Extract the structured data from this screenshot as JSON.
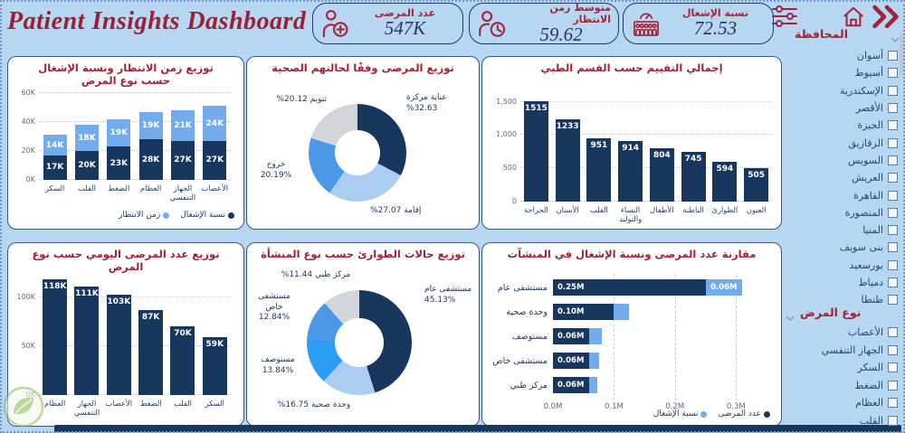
{
  "page": {
    "title": "Patient Insights Dashboard",
    "bg_color": "#b7d6f2",
    "accent_red": "#a12234",
    "navy": "#17375e",
    "light_blue": "#72acec"
  },
  "header": {
    "kpis": [
      {
        "label": "عدد المرضى",
        "value": "547K",
        "icon": "doctor-icon"
      },
      {
        "label": "متوسط زمن الانتظار",
        "value": "59.62",
        "icon": "person-clock-icon"
      },
      {
        "label": "نسبة الإشغال",
        "value": "72.53",
        "icon": "people-gauge-icon"
      }
    ]
  },
  "toolbar": {
    "icons": [
      "filter-sliders-icon",
      "home-icon",
      "double-chevron-icon"
    ]
  },
  "sidebar": {
    "filters": [
      {
        "title": "المحافظة",
        "items": [
          "أسوان",
          "أسيوط",
          "الإسكندرية",
          "الأقصر",
          "الجيزة",
          "الزقازيق",
          "السويس",
          "العريش",
          "القاهرة",
          "المنصورة",
          "المنيا",
          "بنى سويف",
          "بورسعيد",
          "دمياط",
          "طنطا"
        ]
      },
      {
        "title": "نوع المرض",
        "items": [
          "الأعصاب",
          "الجهاز التنفسي",
          "السكر",
          "الضغط",
          "العظام",
          "القلب"
        ]
      }
    ]
  },
  "chart_data": [
    {
      "id": "wait-time-occupancy-by-disease",
      "type": "column-stacked",
      "title": "توزيع زمن الانتظار ونسبة الإشغال حسب نوع المرض",
      "categories": [
        "السكر",
        "القلب",
        "الضغط",
        "العظام",
        "الجهاز التنفسي",
        "الأعصاب"
      ],
      "series": [
        {
          "name": "نسبة الإشغال",
          "color": "#17375e",
          "values": [
            17,
            20,
            23,
            28,
            27,
            27
          ],
          "labels": [
            "17K",
            "20K",
            "23K",
            "28K",
            "27K",
            "27K"
          ]
        },
        {
          "name": "زمن الانتظار",
          "color": "#72acec",
          "values": [
            14,
            18,
            19,
            19,
            21,
            24
          ],
          "labels": [
            "14K",
            "18K",
            "19K",
            "19K",
            "21K",
            "24K"
          ]
        }
      ],
      "ymax": 60,
      "yticks": [
        {
          "value": 0,
          "label": "0K"
        },
        {
          "value": 20,
          "label": "20K"
        },
        {
          "value": 40,
          "label": "40K"
        },
        {
          "value": 60,
          "label": "60K"
        }
      ],
      "legend": [
        {
          "label": "نسبة الإشغال",
          "color": "#17375e"
        },
        {
          "label": "زمن الانتظار",
          "color": "#72acec"
        }
      ]
    },
    {
      "id": "patients-by-health-status",
      "type": "donut",
      "title": "توزيع المرضى وفقًا لحالتهم الصحية",
      "slices": [
        {
          "label": "عناية مركزة",
          "value": 32.63,
          "pct": "32.63%",
          "color": "#17375e"
        },
        {
          "label": "إقامة",
          "value": 27.07,
          "pct": "27.07%",
          "color": "#abcdf2"
        },
        {
          "label": "خروج",
          "value": 20.19,
          "pct": "20.19%",
          "color": "#4b98e9"
        },
        {
          "label": "تنويم",
          "value": 20.12,
          "pct": "20.12%",
          "color": "#d2d5d9"
        }
      ]
    },
    {
      "id": "total-rating-by-department",
      "type": "column",
      "title": "إجمالي التقييم حسب القسم الطبي",
      "categories": [
        "الجراحة",
        "الأسنان",
        "القلب",
        "النساء والتوليد",
        "الأطفال",
        "الباطنة",
        "الطوارئ",
        "العيون"
      ],
      "series": [
        {
          "name": "إجمالي التقييم",
          "color": "#17375e",
          "values": [
            1515,
            1233,
            951,
            914,
            804,
            745,
            594,
            505
          ],
          "labels": [
            "1515",
            "1233",
            "951",
            "914",
            "804",
            "745",
            "594",
            "505"
          ]
        }
      ],
      "ymax": 1550,
      "yticks": [
        {
          "value": 0,
          "label": "0"
        },
        {
          "value": 500,
          "label": "500"
        },
        {
          "value": 1000,
          "label": "1,000"
        },
        {
          "value": 1500,
          "label": "1,500"
        }
      ]
    },
    {
      "id": "daily-patients-by-disease",
      "type": "column",
      "title": "توزيع عدد المرضى اليومي حسب نوع المرض",
      "categories": [
        "العظام",
        "الجهاز التنفسي",
        "الأعصاب",
        "الضغط",
        "القلب",
        "السكر"
      ],
      "series": [
        {
          "name": "عدد المرضى اليومي",
          "color": "#17375e",
          "values": [
            118,
            111,
            103,
            87,
            70,
            59
          ],
          "labels": [
            "118K",
            "111K",
            "103K",
            "87K",
            "70K",
            "59K"
          ]
        }
      ],
      "ymax": 122,
      "yticks": [
        {
          "value": 0,
          "label": "0K"
        },
        {
          "value": 50,
          "label": "50K"
        },
        {
          "value": 100,
          "label": "100K"
        }
      ]
    },
    {
      "id": "emergency-by-facility-type",
      "type": "donut",
      "title": "توزيع حالات الطوارئ حسب نوع المنشأة",
      "slices": [
        {
          "label": "مستشفى عام",
          "value": 45.13,
          "pct": "45.13%",
          "color": "#17375e"
        },
        {
          "label": "وحدة صحية",
          "value": 16.75,
          "pct": "16.75%",
          "color": "#abcdf2"
        },
        {
          "label": "مستوصف",
          "value": 13.84,
          "pct": "13.84%",
          "color": "#2d9cf4"
        },
        {
          "label": "مستشفى خاص",
          "value": 12.84,
          "pct": "12.84%",
          "color": "#4b98e9"
        },
        {
          "label": "مركز طبي",
          "value": 11.44,
          "pct": "11.44%",
          "color": "#d2d5d9"
        }
      ]
    },
    {
      "id": "patients-occupancy-by-facility",
      "type": "bar-h-stacked",
      "title": "مقارنة عدد المرضى ونسبة الإشغال في المنشآت",
      "categories": [
        "مستشفى عام",
        "وحدة صحية",
        "مستوصف",
        "مستشفى خاص",
        "مركز طبي"
      ],
      "series": [
        {
          "name": "عدد المرضى",
          "color": "#17375e",
          "values": [
            0.25,
            0.1,
            0.06,
            0.06,
            0.06
          ],
          "labels": [
            "0.25M",
            "0.10M",
            "0.06M",
            "0.06M",
            "0.06M"
          ]
        },
        {
          "name": "نسبة الإشغال",
          "color": "#72acec",
          "values": [
            0.06,
            0.025,
            0.02,
            0.015,
            0.012
          ],
          "labels": [
            "0.06M",
            "",
            "",
            "",
            ""
          ]
        }
      ],
      "xmax": 0.35,
      "xticks": [
        {
          "value": 0,
          "label": "0.0M"
        },
        {
          "value": 0.1,
          "label": "0.1M"
        },
        {
          "value": 0.2,
          "label": "0.2M"
        },
        {
          "value": 0.3,
          "label": "0.3M"
        }
      ],
      "legend": [
        {
          "label": "عدد المرضى",
          "color": "#17375e"
        },
        {
          "label": "نسبة الإشغال",
          "color": "#72acec"
        }
      ]
    }
  ]
}
